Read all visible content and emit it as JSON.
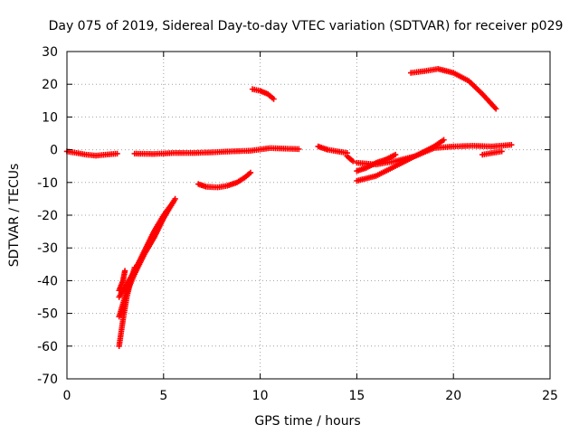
{
  "chart_data": {
    "type": "scatter",
    "title": "Day 075 of 2019, Sidereal Day-to-day VTEC variation (SDTVAR) for receiver p029",
    "xlabel": "GPS time / hours",
    "ylabel": "SDTVAR / TECUs",
    "xlim": [
      0,
      25
    ],
    "ylim": [
      -70,
      30
    ],
    "xticks": [
      0,
      5,
      10,
      15,
      20,
      25
    ],
    "yticks": [
      -70,
      -60,
      -50,
      -40,
      -30,
      -20,
      -10,
      0,
      10,
      20,
      30
    ],
    "grid": true,
    "marker_color": "#ff0000",
    "series": [
      {
        "name": "track-1",
        "x": [
          0.0,
          0.5,
          1.0,
          1.5,
          2.0,
          2.6
        ],
        "y": [
          -0.5,
          -1.0,
          -1.5,
          -1.8,
          -1.5,
          -1.2
        ]
      },
      {
        "name": "track-2",
        "x": [
          3.5,
          4.5,
          5.5,
          6.5,
          7.5,
          8.5,
          9.5,
          10.5,
          11.5,
          12.0
        ],
        "y": [
          -1.2,
          -1.3,
          -1.0,
          -1.0,
          -0.8,
          -0.5,
          -0.3,
          0.5,
          0.3,
          0.2
        ]
      },
      {
        "name": "track-3",
        "x": [
          13.0,
          13.5,
          14.0,
          14.5
        ],
        "y": [
          1.0,
          0.0,
          -0.5,
          -1.0
        ]
      },
      {
        "name": "track-4",
        "x": [
          14.5,
          14.8
        ],
        "y": [
          -2.0,
          -3.5
        ]
      },
      {
        "name": "track-5",
        "x": [
          15.0,
          16.0,
          17.0,
          18.0,
          19.0,
          20.0,
          21.0,
          22.0,
          23.0
        ],
        "y": [
          -4.0,
          -4.5,
          -3.5,
          -2.0,
          0.5,
          1.0,
          1.2,
          1.0,
          1.5
        ]
      },
      {
        "name": "track-6",
        "x": [
          15.0,
          15.5,
          16.0,
          16.5,
          17.0
        ],
        "y": [
          -6.5,
          -5.5,
          -4.0,
          -3.0,
          -1.5
        ]
      },
      {
        "name": "track-7",
        "x": [
          15.0,
          16.0,
          17.0,
          18.0,
          19.0,
          19.5
        ],
        "y": [
          -9.5,
          -8.0,
          -5.0,
          -2.0,
          1.0,
          3.0
        ]
      },
      {
        "name": "track-8",
        "x": [
          21.5,
          22.0,
          22.5
        ],
        "y": [
          -1.5,
          -1.0,
          -0.5
        ]
      },
      {
        "name": "track-9",
        "x": [
          6.8,
          7.2,
          7.8,
          8.3,
          8.8,
          9.2,
          9.5
        ],
        "y": [
          -10.5,
          -11.3,
          -11.5,
          -11.0,
          -10.0,
          -8.5,
          -7.0
        ]
      },
      {
        "name": "track-10",
        "x": [
          9.6,
          10.0,
          10.4,
          10.7
        ],
        "y": [
          18.5,
          18.0,
          17.0,
          15.5
        ]
      },
      {
        "name": "track-11",
        "x": [
          17.8,
          18.5,
          19.2,
          20.0,
          20.8,
          21.5,
          22.2
        ],
        "y": [
          23.5,
          24.0,
          24.7,
          23.5,
          21.0,
          17.0,
          12.5
        ]
      },
      {
        "name": "track-12",
        "x": [
          2.7,
          2.9,
          3.1,
          3.3,
          3.5
        ],
        "y": [
          -60.0,
          -52.0,
          -45.0,
          -40.0,
          -36.0
        ]
      },
      {
        "name": "track-13",
        "x": [
          2.7,
          3.0,
          3.5,
          4.0,
          4.5,
          5.0,
          5.6
        ],
        "y": [
          -51.0,
          -45.0,
          -38.0,
          -32.0,
          -27.0,
          -21.0,
          -15.0
        ]
      },
      {
        "name": "track-14",
        "x": [
          2.7,
          3.0,
          3.5,
          4.0,
          4.5,
          5.0,
          5.5
        ],
        "y": [
          -45.0,
          -42.0,
          -37.0,
          -31.0,
          -25.0,
          -20.0,
          -16.0
        ]
      },
      {
        "name": "track-15",
        "x": [
          2.7,
          2.9,
          3.0
        ],
        "y": [
          -43.0,
          -40.0,
          -37.0
        ]
      }
    ]
  }
}
